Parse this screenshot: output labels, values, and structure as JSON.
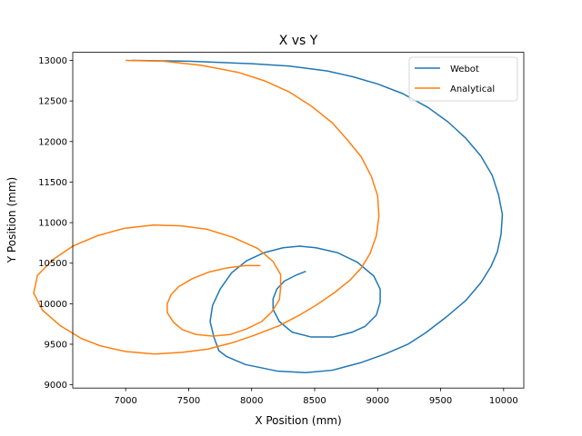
{
  "chart_data": {
    "type": "line",
    "title": "X vs Y",
    "xlabel": "X Position (mm)",
    "ylabel": "Y Position (mm)",
    "xlim": [
      6580,
      10160
    ],
    "ylim": [
      8960,
      13100
    ],
    "xticks": [
      7000,
      7500,
      8000,
      8500,
      9000,
      9500,
      10000
    ],
    "yticks": [
      9000,
      9500,
      10000,
      10500,
      11000,
      11500,
      12000,
      12500,
      13000
    ],
    "grid": false,
    "legend_position": "top-right",
    "series": [
      {
        "name": "Webot",
        "color": "#1f77b4",
        "points": [
          [
            7050,
            13000
          ],
          [
            7500,
            12990
          ],
          [
            8000,
            12960
          ],
          [
            8300,
            12930
          ],
          [
            8600,
            12870
          ],
          [
            8800,
            12800
          ],
          [
            9000,
            12710
          ],
          [
            9200,
            12590
          ],
          [
            9400,
            12420
          ],
          [
            9560,
            12240
          ],
          [
            9700,
            12040
          ],
          [
            9820,
            11820
          ],
          [
            9910,
            11580
          ],
          [
            9960,
            11340
          ],
          [
            9990,
            11100
          ],
          [
            9980,
            10860
          ],
          [
            9950,
            10640
          ],
          [
            9900,
            10460
          ],
          [
            9820,
            10260
          ],
          [
            9700,
            10040
          ],
          [
            9540,
            9830
          ],
          [
            9380,
            9640
          ],
          [
            9240,
            9500
          ],
          [
            9060,
            9380
          ],
          [
            8860,
            9270
          ],
          [
            8640,
            9180
          ],
          [
            8430,
            9150
          ],
          [
            8200,
            9170
          ],
          [
            7950,
            9250
          ],
          [
            7800,
            9350
          ],
          [
            7740,
            9420
          ],
          [
            7700,
            9590
          ],
          [
            7670,
            9780
          ],
          [
            7690,
            9980
          ],
          [
            7750,
            10180
          ],
          [
            7840,
            10380
          ],
          [
            7960,
            10530
          ],
          [
            8100,
            10630
          ],
          [
            8250,
            10690
          ],
          [
            8380,
            10710
          ],
          [
            8510,
            10690
          ],
          [
            8680,
            10630
          ],
          [
            8840,
            10510
          ],
          [
            8970,
            10340
          ],
          [
            9020,
            10180
          ],
          [
            9020,
            10020
          ],
          [
            8990,
            9860
          ],
          [
            8900,
            9720
          ],
          [
            8800,
            9650
          ],
          [
            8650,
            9590
          ],
          [
            8470,
            9590
          ],
          [
            8320,
            9650
          ],
          [
            8220,
            9780
          ],
          [
            8170,
            9930
          ],
          [
            8170,
            10060
          ],
          [
            8200,
            10180
          ],
          [
            8260,
            10280
          ],
          [
            8350,
            10350
          ],
          [
            8430,
            10400
          ]
        ]
      },
      {
        "name": "Analytical",
        "color": "#ff7f0e",
        "points": [
          [
            7000,
            13000
          ],
          [
            7300,
            12990
          ],
          [
            7600,
            12940
          ],
          [
            7900,
            12850
          ],
          [
            8100,
            12750
          ],
          [
            8300,
            12610
          ],
          [
            8480,
            12430
          ],
          [
            8640,
            12230
          ],
          [
            8760,
            12020
          ],
          [
            8870,
            11810
          ],
          [
            8950,
            11570
          ],
          [
            9000,
            11330
          ],
          [
            9010,
            11080
          ],
          [
            8990,
            10840
          ],
          [
            8940,
            10620
          ],
          [
            8870,
            10440
          ],
          [
            8780,
            10290
          ],
          [
            8660,
            10140
          ],
          [
            8520,
            9990
          ],
          [
            8380,
            9860
          ],
          [
            8220,
            9730
          ],
          [
            8020,
            9610
          ],
          [
            7850,
            9520
          ],
          [
            7650,
            9440
          ],
          [
            7450,
            9400
          ],
          [
            7230,
            9380
          ],
          [
            7000,
            9410
          ],
          [
            6800,
            9480
          ],
          [
            6650,
            9570
          ],
          [
            6480,
            9730
          ],
          [
            6340,
            9920
          ],
          [
            6270,
            10130
          ],
          [
            6300,
            10350
          ],
          [
            6420,
            10540
          ],
          [
            6580,
            10710
          ],
          [
            6780,
            10840
          ],
          [
            6990,
            10930
          ],
          [
            7220,
            10970
          ],
          [
            7440,
            10960
          ],
          [
            7640,
            10920
          ],
          [
            7850,
            10820
          ],
          [
            8050,
            10680
          ],
          [
            8170,
            10520
          ],
          [
            8230,
            10360
          ],
          [
            8230,
            10200
          ],
          [
            8220,
            10050
          ],
          [
            8160,
            9900
          ],
          [
            8080,
            9780
          ],
          [
            7960,
            9690
          ],
          [
            7830,
            9620
          ],
          [
            7690,
            9600
          ],
          [
            7560,
            9620
          ],
          [
            7450,
            9680
          ],
          [
            7380,
            9770
          ],
          [
            7330,
            9890
          ],
          [
            7330,
            10000
          ],
          [
            7360,
            10110
          ],
          [
            7420,
            10210
          ],
          [
            7530,
            10310
          ],
          [
            7660,
            10390
          ],
          [
            7800,
            10440
          ],
          [
            7950,
            10470
          ],
          [
            8070,
            10470
          ]
        ]
      }
    ]
  }
}
